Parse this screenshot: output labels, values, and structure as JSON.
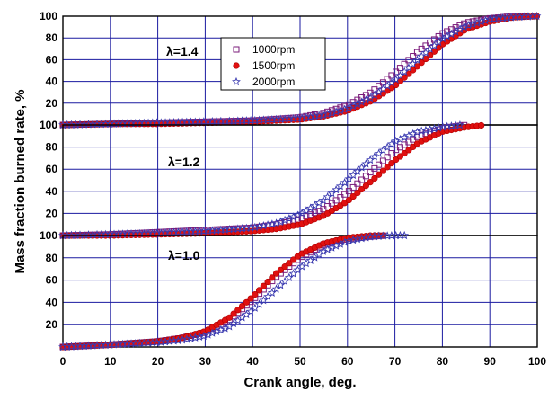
{
  "chart_data": {
    "type": "scatter",
    "xlabel": "Crank angle, deg.",
    "ylabel": "Mass fraction burned rate, %",
    "xlim": [
      0,
      100
    ],
    "x_ticks": [
      0,
      10,
      20,
      30,
      40,
      50,
      60,
      70,
      80,
      90,
      100
    ],
    "y_ticks": [
      0,
      20,
      40,
      60,
      80,
      100
    ],
    "grid": true,
    "legend": {
      "position": "top panel, center",
      "entries": [
        {
          "name": "1000rpm",
          "marker": "open-square",
          "color": "#7a1a7a"
        },
        {
          "name": "1500rpm",
          "marker": "filled-circle",
          "color": "#e01010"
        },
        {
          "name": "2000rpm",
          "marker": "open-star",
          "color": "#3a3ab0"
        }
      ]
    },
    "panels": [
      {
        "label": "λ=1.4",
        "ylim": [
          0,
          100
        ],
        "series": [
          {
            "name": "1000rpm",
            "x": [
              0,
              10,
              20,
              30,
              40,
              50,
              55,
              60,
              65,
              70,
              75,
              80,
              85,
              90,
              95,
              98
            ],
            "y": [
              0,
              1,
              2,
              3,
              4,
              7,
              11,
              18,
              30,
              48,
              68,
              84,
              94,
              98,
              100,
              100
            ]
          },
          {
            "name": "1500rpm",
            "x": [
              0,
              10,
              20,
              30,
              40,
              50,
              55,
              60,
              65,
              70,
              75,
              80,
              85,
              90,
              95,
              100
            ],
            "y": [
              0,
              1,
              1,
              2,
              3,
              5,
              8,
              13,
              22,
              36,
              55,
              74,
              88,
              95,
              99,
              100
            ]
          },
          {
            "name": "2000rpm",
            "x": [
              0,
              10,
              20,
              30,
              40,
              50,
              55,
              60,
              65,
              70,
              75,
              80,
              85,
              90,
              95,
              100
            ],
            "y": [
              0,
              1,
              2,
              3,
              4,
              6,
              9,
              15,
              25,
              41,
              61,
              79,
              91,
              97,
              99,
              100
            ]
          }
        ]
      },
      {
        "label": "λ=1.2",
        "ylim": [
          0,
          100
        ],
        "series": [
          {
            "name": "1000rpm",
            "x": [
              0,
              10,
              20,
              30,
              40,
              45,
              50,
              55,
              60,
              65,
              70,
              75,
              80,
              85
            ],
            "y": [
              0,
              1,
              3,
              5,
              7,
              10,
              15,
              24,
              39,
              58,
              77,
              90,
              97,
              100
            ]
          },
          {
            "name": "1500rpm",
            "x": [
              0,
              10,
              20,
              30,
              40,
              45,
              50,
              55,
              60,
              65,
              70,
              75,
              80,
              85,
              89
            ],
            "y": [
              0,
              0,
              1,
              2,
              4,
              6,
              10,
              18,
              31,
              49,
              68,
              84,
              94,
              98,
              100
            ]
          },
          {
            "name": "2000rpm",
            "x": [
              0,
              10,
              20,
              30,
              40,
              45,
              50,
              55,
              60,
              65,
              70,
              75,
              80,
              84
            ],
            "y": [
              0,
              1,
              2,
              4,
              7,
              11,
              19,
              32,
              50,
              69,
              85,
              94,
              98,
              100
            ]
          }
        ]
      },
      {
        "label": "λ=1.0",
        "ylim": [
          0,
          100
        ],
        "series": [
          {
            "name": "1000rpm",
            "x": [
              0,
              10,
              20,
              25,
              30,
              35,
              40,
              45,
              50,
              55,
              60,
              65,
              68
            ],
            "y": [
              0,
              2,
              5,
              8,
              13,
              24,
              42,
              63,
              80,
              92,
              97,
              99,
              100
            ]
          },
          {
            "name": "1500rpm",
            "x": [
              0,
              10,
              20,
              25,
              30,
              35,
              40,
              45,
              50,
              55,
              60,
              65,
              68
            ],
            "y": [
              0,
              2,
              5,
              8,
              14,
              26,
              45,
              66,
              83,
              93,
              98,
              100,
              100
            ]
          },
          {
            "name": "2000rpm",
            "x": [
              0,
              10,
              20,
              25,
              30,
              35,
              40,
              45,
              50,
              55,
              60,
              65,
              70,
              72
            ],
            "y": [
              0,
              2,
              4,
              6,
              10,
              18,
              33,
              52,
              71,
              86,
              95,
              99,
              100,
              100
            ]
          }
        ]
      }
    ]
  }
}
